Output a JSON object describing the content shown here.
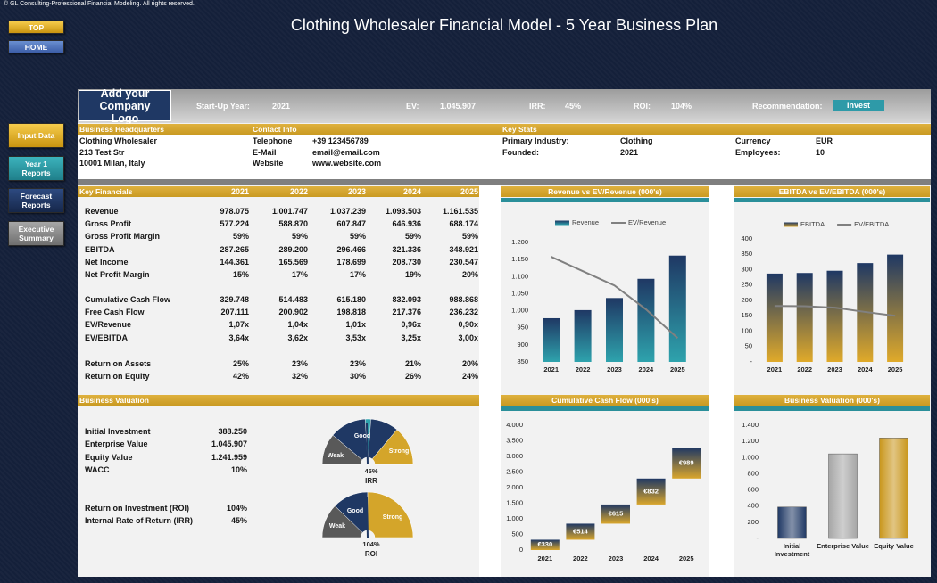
{
  "copyright": "© GL Consulting-Professional Financial Modeling. All rights reserved.",
  "title": "Clothing Wholesaler Financial Model - 5 Year Business Plan",
  "nav": [
    "TOP",
    "HOME"
  ],
  "menu": [
    "Input Data",
    "Year 1 Reports",
    "Forecast Reports",
    "Executive Summary"
  ],
  "logo": "Add your Company Logo",
  "summary": [
    {
      "label": "Start-Up Year:",
      "value": "2021"
    },
    {
      "label": "EV:",
      "value": "1.045.907"
    },
    {
      "label": "IRR:",
      "value": "45%"
    },
    {
      "label": "ROI:",
      "value": "104%"
    }
  ],
  "recommendation": {
    "label": "Recommendation:",
    "value": "Invest"
  },
  "headquarters": {
    "title": "Business Headquarters",
    "lines": [
      "Clothing Wholesaler",
      "213 Test Str",
      "10001 Milan, Italy"
    ]
  },
  "contact": {
    "title": "Contact Info",
    "rows": [
      [
        "Telephone",
        "+39 123456789"
      ],
      [
        "E-Mail",
        "email@email.com"
      ],
      [
        "Website",
        "www.website.com"
      ]
    ]
  },
  "key_stats": {
    "title": "Key Stats",
    "rows": [
      [
        "Primary Industry:",
        "Clothing"
      ],
      [
        "Founded:",
        "2021"
      ],
      [
        "Currency",
        "EUR"
      ],
      [
        "Employees:",
        "10"
      ]
    ]
  },
  "key_financials": {
    "title": "Key Financials",
    "columns": [
      "2021",
      "2022",
      "2023",
      "2024",
      "2025"
    ],
    "groups": [
      [
        {
          "label": "Revenue",
          "values": [
            "978.075",
            "1.001.747",
            "1.037.239",
            "1.093.503",
            "1.161.535"
          ]
        },
        {
          "label": "Gross Profit",
          "values": [
            "577.224",
            "588.870",
            "607.847",
            "646.936",
            "688.174"
          ]
        },
        {
          "label": "Gross Profit Margin",
          "values": [
            "59%",
            "59%",
            "59%",
            "59%",
            "59%"
          ]
        },
        {
          "label": "EBITDA",
          "values": [
            "287.265",
            "289.200",
            "296.466",
            "321.336",
            "348.921"
          ]
        },
        {
          "label": "Net Income",
          "values": [
            "144.361",
            "165.569",
            "178.699",
            "208.730",
            "230.547"
          ]
        },
        {
          "label": "Net Profit Margin",
          "values": [
            "15%",
            "17%",
            "17%",
            "19%",
            "20%"
          ]
        }
      ],
      [
        {
          "label": "Cumulative Cash Flow",
          "values": [
            "329.748",
            "514.483",
            "615.180",
            "832.093",
            "988.868"
          ]
        },
        {
          "label": "Free Cash Flow",
          "values": [
            "207.111",
            "200.902",
            "198.818",
            "217.376",
            "236.232"
          ]
        },
        {
          "label": "EV/Revenue",
          "values": [
            "1,07x",
            "1,04x",
            "1,01x",
            "0,96x",
            "0,90x"
          ]
        },
        {
          "label": "EV/EBITDA",
          "values": [
            "3,64x",
            "3,62x",
            "3,53x",
            "3,25x",
            "3,00x"
          ]
        }
      ],
      [
        {
          "label": "Return on Assets",
          "values": [
            "25%",
            "23%",
            "23%",
            "21%",
            "20%"
          ]
        },
        {
          "label": "Return on Equity",
          "values": [
            "42%",
            "32%",
            "30%",
            "26%",
            "24%"
          ]
        }
      ]
    ]
  },
  "valuation": {
    "title": "Business Valuation",
    "groups": [
      [
        [
          "Initial Investment",
          "388.250"
        ],
        [
          "Enterprise Value",
          "1.045.907"
        ],
        [
          "Equity Value",
          "1.241.959"
        ],
        [
          "WACC",
          "10%"
        ]
      ],
      [
        [
          "Return on Investment (ROI)",
          "104%"
        ],
        [
          "Internal Rate of Return (IRR)",
          "45%"
        ]
      ]
    ]
  },
  "gauges": [
    {
      "labels": [
        "Weak",
        "Good",
        "Strong"
      ],
      "value": "45%",
      "name": "IRR"
    },
    {
      "labels": [
        "Weak",
        "Good",
        "Strong"
      ],
      "value": "104%",
      "name": "ROI"
    }
  ],
  "chart_data": [
    {
      "type": "bar",
      "title": "Revenue vs EV/Revenue (000's)",
      "categories": [
        "2021",
        "2022",
        "2023",
        "2024",
        "2025"
      ],
      "series": [
        {
          "name": "Revenue",
          "color": [
            "#1f3864",
            "#2ea3ad"
          ],
          "values": [
            978.075,
            1001.747,
            1037.239,
            1093.503,
            1161.535
          ]
        },
        {
          "name": "EV/Revenue",
          "type": "line",
          "axis": "y2",
          "color": "#808080",
          "values": [
            1.07,
            1.04,
            1.01,
            0.96,
            0.9
          ]
        }
      ],
      "ylim": [
        850,
        1200
      ],
      "yticks": [
        850,
        900,
        950,
        {
          "value": 1000,
          "label": "1.000"
        },
        {
          "value": 1050,
          "label": "1.050"
        },
        {
          "value": 1100,
          "label": "1.100"
        },
        {
          "value": 1150,
          "label": "1.150"
        },
        {
          "value": 1200,
          "label": "1.200"
        }
      ],
      "y2lim": [
        0.85,
        1.1
      ],
      "legend": "top",
      "grid": false
    },
    {
      "type": "bar",
      "title": "EBITDA vs EV/EBITDA (000's)",
      "categories": [
        "2021",
        "2022",
        "2023",
        "2024",
        "2025"
      ],
      "series": [
        {
          "name": "EBITDA",
          "color": [
            "#1f3864",
            "#e0aa2a"
          ],
          "values": [
            287.265,
            289.2,
            296.466,
            321.336,
            348.921
          ]
        },
        {
          "name": "EV/EBITDA",
          "type": "line",
          "axis": "y2",
          "color": "#808080",
          "values": [
            3.64,
            3.62,
            3.53,
            3.25,
            3.0
          ]
        }
      ],
      "ylim": [
        0,
        400
      ],
      "yticks": [
        {
          "value": 0,
          "label": "-"
        },
        50,
        100,
        150,
        200,
        250,
        300,
        350,
        400
      ],
      "y2lim": [
        0,
        8
      ],
      "legend": "top",
      "grid": false
    },
    {
      "type": "waterfall",
      "title": "Cumulative Cash Flow (000's)",
      "categories": [
        "2021",
        "2022",
        "2023",
        "2024",
        "2025"
      ],
      "values": [
        329.748,
        514.483,
        615.18,
        832.093,
        988.868
      ],
      "value_labels": [
        "€330",
        "€514",
        "€615",
        "€832",
        "€989"
      ],
      "color": [
        "#1f3864",
        "#d9a62c"
      ],
      "ylim": [
        0,
        4000
      ],
      "yticks": [
        0,
        500,
        {
          "value": 1000,
          "label": "1.000"
        },
        {
          "value": 1500,
          "label": "1.500"
        },
        {
          "value": 2000,
          "label": "2.000"
        },
        {
          "value": 2500,
          "label": "2.500"
        },
        {
          "value": 3000,
          "label": "3.000"
        },
        {
          "value": 3500,
          "label": "3.500"
        },
        {
          "value": 4000,
          "label": "4.000"
        }
      ],
      "grid": false
    },
    {
      "type": "bar",
      "title": "Business Valuation (000's)",
      "categories": [
        "Initial Investment",
        "Enterprise Value",
        "Equity Value"
      ],
      "values": [
        388.25,
        1045.907,
        1241.959
      ],
      "colors": [
        "#1f3864",
        "#a6a6a6",
        "#c9961c"
      ],
      "ylim": [
        0,
        1400
      ],
      "yticks": [
        {
          "value": 0,
          "label": "-"
        },
        200,
        400,
        600,
        800,
        {
          "value": 1000,
          "label": "1.000"
        },
        {
          "value": 1200,
          "label": "1.200"
        },
        {
          "value": 1400,
          "label": "1.400"
        }
      ],
      "grid": false
    }
  ]
}
